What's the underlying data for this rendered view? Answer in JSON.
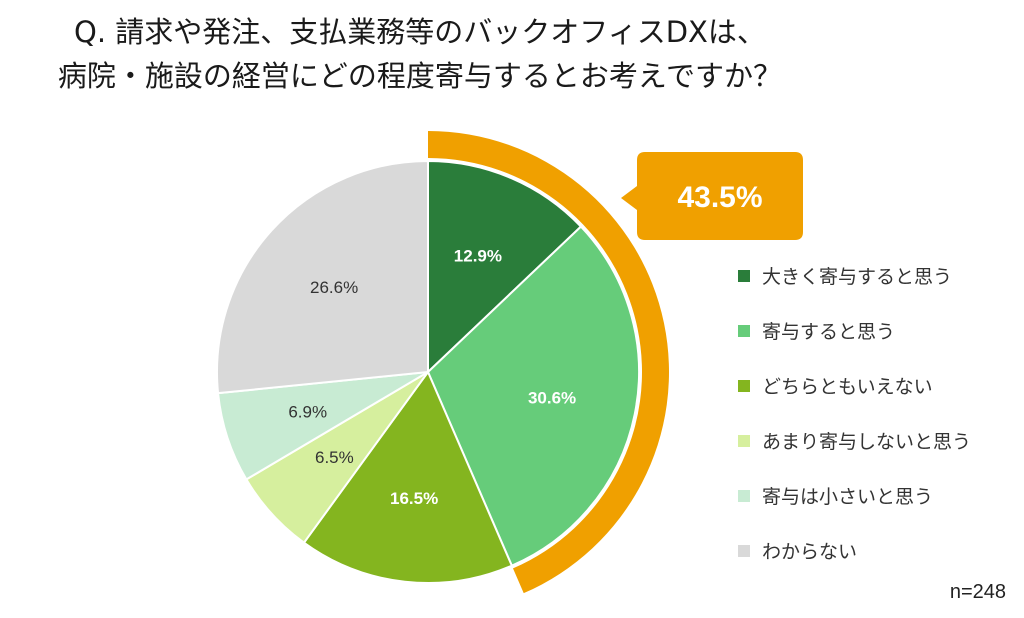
{
  "chart_data": {
    "type": "pie",
    "title_line1": "Q. 請求や発注、支払業務等のバックオフィスDXは、",
    "title_line2": "病院・施設の経営にどの程度寄与するとお考えですか？",
    "slices": [
      {
        "label": "大きく寄与すると思う",
        "value": 12.9,
        "display": "12.9%",
        "color": "#2a7d3a",
        "text_color": "#ffffff"
      },
      {
        "label": "寄与すると思う",
        "value": 30.6,
        "display": "30.6%",
        "color": "#66cc7a",
        "text_color": "#ffffff"
      },
      {
        "label": "どちらともいえない",
        "value": 16.5,
        "display": "16.5%",
        "color": "#84b51f",
        "text_color": "#ffffff"
      },
      {
        "label": "あまり寄与しないと思う",
        "value": 6.5,
        "display": "6.5%",
        "color": "#d6ef9e",
        "text_color": "#333333"
      },
      {
        "label": "寄与は小さいと思う",
        "value": 6.9,
        "display": "6.9%",
        "color": "#c8ebd3",
        "text_color": "#333333"
      },
      {
        "label": "わからない",
        "value": 26.6,
        "display": "26.6%",
        "color": "#d9d9d9",
        "text_color": "#333333"
      }
    ],
    "highlight": {
      "value": 43.5,
      "display": "43.5%",
      "color": "#f0a000",
      "covers": [
        "大きく寄与すると思う",
        "寄与すると思う"
      ]
    },
    "legend_position": "right",
    "sample_size": "n=248"
  }
}
